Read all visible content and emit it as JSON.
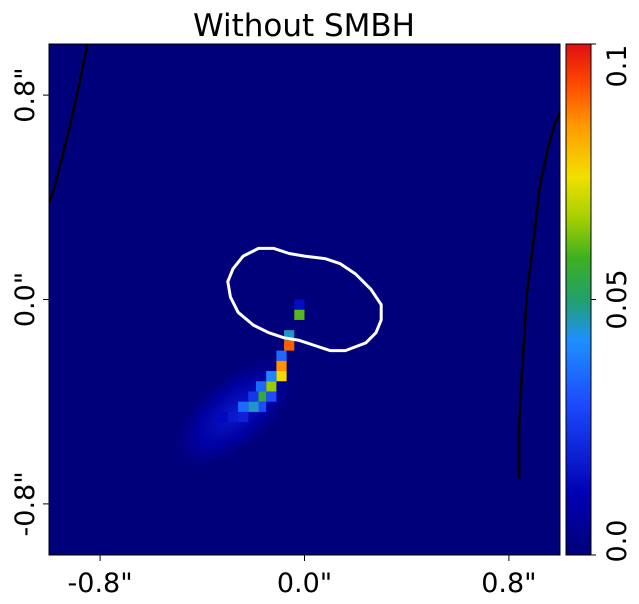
{
  "chart_data": {
    "type": "heatmap",
    "title": "Without SMBH",
    "xlabel": "",
    "ylabel": "",
    "x_ticks": [
      "-0.8\"",
      "0.0\"",
      "0.8\""
    ],
    "x_tick_values": [
      -0.8,
      0.0,
      0.8
    ],
    "y_ticks": [
      "-0.8\"",
      "0.0\"",
      "0.8\""
    ],
    "y_tick_values": [
      -0.8,
      0.0,
      0.8
    ],
    "xlim": [
      -1.0,
      1.0
    ],
    "ylim": [
      -1.0,
      1.0
    ],
    "colorbar": {
      "ticks": [
        "0.0",
        "0.05",
        "0.1"
      ],
      "tick_values": [
        0.0,
        0.05,
        0.1
      ],
      "range": [
        0.0,
        0.1
      ],
      "colormap": "jet-like (dark blue → blue → cyan → green → yellow → orange → red)"
    },
    "background_value": 0.0,
    "hot_pixels": [
      {
        "x": -0.02,
        "y": -0.02,
        "value": 0.015
      },
      {
        "x": -0.02,
        "y": -0.06,
        "value": 0.06
      },
      {
        "x": -0.06,
        "y": -0.14,
        "value": 0.045
      },
      {
        "x": -0.06,
        "y": -0.18,
        "value": 0.09
      },
      {
        "x": -0.09,
        "y": -0.22,
        "value": 0.035
      },
      {
        "x": -0.09,
        "y": -0.26,
        "value": 0.085
      },
      {
        "x": -0.09,
        "y": -0.3,
        "value": 0.075
      },
      {
        "x": -0.13,
        "y": -0.3,
        "value": 0.04
      },
      {
        "x": -0.13,
        "y": -0.34,
        "value": 0.065
      },
      {
        "x": -0.13,
        "y": -0.38,
        "value": 0.03
      },
      {
        "x": -0.17,
        "y": -0.34,
        "value": 0.035
      },
      {
        "x": -0.17,
        "y": -0.38,
        "value": 0.055
      },
      {
        "x": -0.17,
        "y": -0.42,
        "value": 0.03
      },
      {
        "x": -0.2,
        "y": -0.38,
        "value": 0.025
      },
      {
        "x": -0.2,
        "y": -0.42,
        "value": 0.045
      },
      {
        "x": -0.24,
        "y": -0.42,
        "value": 0.035
      },
      {
        "x": -0.24,
        "y": -0.46,
        "value": 0.02
      },
      {
        "x": -0.28,
        "y": -0.46,
        "value": 0.018
      },
      {
        "x": -0.32,
        "y": -0.46,
        "value": 0.014
      }
    ],
    "diffuse_emission": {
      "cx": -0.27,
      "cy": -0.44,
      "rx": 0.34,
      "ry": 0.16,
      "angle_deg": 40,
      "peak": 0.018
    },
    "white_contour": [
      [
        -0.28,
        0.12
      ],
      [
        -0.24,
        0.17
      ],
      [
        -0.18,
        0.2
      ],
      [
        -0.12,
        0.2
      ],
      [
        -0.06,
        0.18
      ],
      [
        0.0,
        0.17
      ],
      [
        0.08,
        0.16
      ],
      [
        0.14,
        0.14
      ],
      [
        0.2,
        0.1
      ],
      [
        0.26,
        0.04
      ],
      [
        0.3,
        -0.02
      ],
      [
        0.3,
        -0.08
      ],
      [
        0.28,
        -0.13
      ],
      [
        0.24,
        -0.17
      ],
      [
        0.16,
        -0.2
      ],
      [
        0.1,
        -0.2
      ],
      [
        0.04,
        -0.18
      ],
      [
        -0.02,
        -0.16
      ],
      [
        -0.08,
        -0.15
      ],
      [
        -0.14,
        -0.13
      ],
      [
        -0.2,
        -0.1
      ],
      [
        -0.26,
        -0.05
      ],
      [
        -0.29,
        0.01
      ],
      [
        -0.3,
        0.07
      ],
      [
        -0.28,
        0.12
      ]
    ],
    "black_contours": [
      [
        [
          -0.85,
          1.0
        ],
        [
          -0.88,
          0.85
        ],
        [
          -0.92,
          0.67
        ],
        [
          -0.98,
          0.43
        ],
        [
          -1.0,
          0.38
        ]
      ],
      [
        [
          1.0,
          0.73
        ],
        [
          0.98,
          0.69
        ],
        [
          0.95,
          0.58
        ],
        [
          0.92,
          0.44
        ],
        [
          0.9,
          0.26
        ],
        [
          0.87,
          0.02
        ],
        [
          0.85,
          -0.3
        ],
        [
          0.84,
          -0.5
        ],
        [
          0.84,
          -0.7
        ]
      ]
    ]
  }
}
